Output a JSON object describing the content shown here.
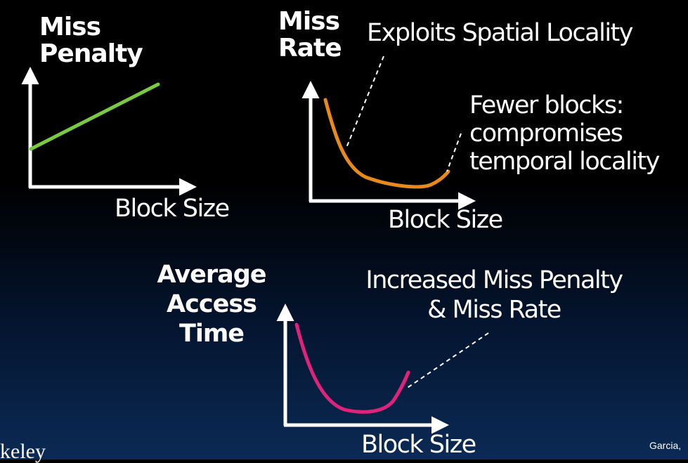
{
  "colors": {
    "miss_penalty_line": "#7ac943",
    "miss_rate_curve": "#e8891a",
    "access_time_curve": "#e0237a",
    "axes": "#ffffff"
  },
  "miss_penalty_graph": {
    "y_label_line1": "Miss",
    "y_label_line2": "Penalty",
    "x_label": "Block Size"
  },
  "miss_rate_graph": {
    "y_label_line1": "Miss",
    "y_label_line2": "Rate",
    "x_label": "Block Size",
    "annotation_spatial": "Exploits Spatial Locality",
    "annotation_temporal_line1": "Fewer blocks:",
    "annotation_temporal_line2": "compromises",
    "annotation_temporal_line3": "temporal locality"
  },
  "access_time_graph": {
    "y_label_line1": "Average",
    "y_label_line2": "Access",
    "y_label_line3": "Time",
    "x_label": "Block Size",
    "annotation_line1": "Increased Miss Penalty",
    "annotation_line2": "& Miss Rate"
  },
  "footer": {
    "author": "Garcia,",
    "logo_text": "keley"
  }
}
